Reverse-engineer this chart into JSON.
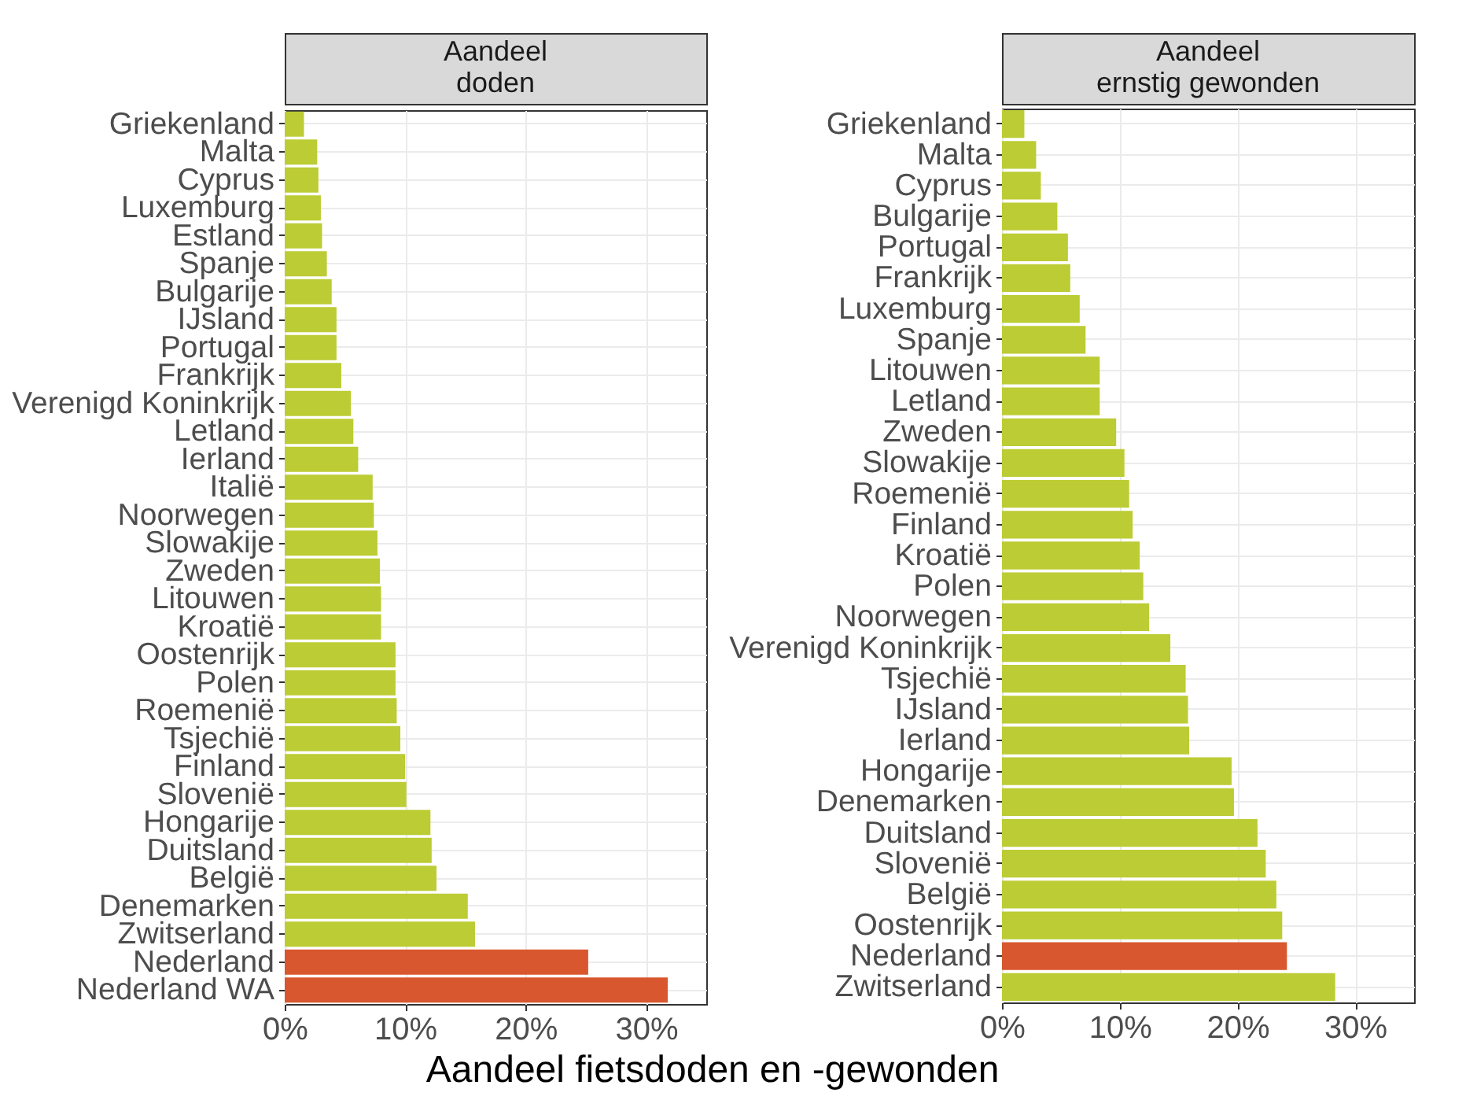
{
  "chart_data": [
    {
      "type": "bar",
      "orientation": "horizontal",
      "title": "Aandeel\ndoden",
      "xlabel": "Aandeel fietsdoden en -gewonden",
      "categories": [
        "Griekenland",
        "Malta",
        "Cyprus",
        "Luxemburg",
        "Estland",
        "Spanje",
        "Bulgarije",
        "IJsland",
        "Portugal",
        "Frankrijk",
        "Verenigd Koninkrijk",
        "Letland",
        "Ierland",
        "Italië",
        "Noorwegen",
        "Slowakije",
        "Zweden",
        "Litouwen",
        "Kroatië",
        "Oostenrijk",
        "Polen",
        "Roemenië",
        "Tsjechië",
        "Finland",
        "Slovenië",
        "Hongarije",
        "Duitsland",
        "België",
        "Denemarken",
        "Zwitserland",
        "Nederland",
        "Nederland WA"
      ],
      "values": [
        1.6,
        2.7,
        2.8,
        3.0,
        3.1,
        3.5,
        3.9,
        4.3,
        4.3,
        4.7,
        5.5,
        5.7,
        6.1,
        7.3,
        7.4,
        7.7,
        7.9,
        8.0,
        8.0,
        9.2,
        9.2,
        9.3,
        9.6,
        10.0,
        10.1,
        12.1,
        12.2,
        12.6,
        15.2,
        15.8,
        25.2,
        31.8
      ],
      "colors": [
        "#bccc34",
        "#bccc34",
        "#bccc34",
        "#bccc34",
        "#bccc34",
        "#bccc34",
        "#bccc34",
        "#bccc34",
        "#bccc34",
        "#bccc34",
        "#bccc34",
        "#bccc34",
        "#bccc34",
        "#bccc34",
        "#bccc34",
        "#bccc34",
        "#bccc34",
        "#bccc34",
        "#bccc34",
        "#bccc34",
        "#bccc34",
        "#bccc34",
        "#bccc34",
        "#bccc34",
        "#bccc34",
        "#bccc34",
        "#bccc34",
        "#bccc34",
        "#bccc34",
        "#bccc34",
        "#d9572e",
        "#d9572e"
      ],
      "xlim": [
        0,
        35
      ],
      "xticks": [
        {
          "value": 0,
          "label": "0%"
        },
        {
          "value": 10,
          "label": "10%"
        },
        {
          "value": 20,
          "label": "20%"
        },
        {
          "value": 30,
          "label": "30%"
        }
      ],
      "grid": true
    },
    {
      "type": "bar",
      "orientation": "horizontal",
      "title": "Aandeel\nernstig gewonden",
      "categories": [
        "Griekenland",
        "Malta",
        "Cyprus",
        "Bulgarije",
        "Portugal",
        "Frankrijk",
        "Luxemburg",
        "Spanje",
        "Litouwen",
        "Letland",
        "Zweden",
        "Slowakije",
        "Roemenië",
        "Finland",
        "Kroatië",
        "Polen",
        "Noorwegen",
        "Verenigd Koninkrijk",
        "Tsjechië",
        "IJsland",
        "Ierland",
        "Hongarije",
        "Denemarken",
        "Duitsland",
        "Slovenië",
        "België",
        "Oostenrijk",
        "Nederland",
        "Zwitserland"
      ],
      "values": [
        1.9,
        2.9,
        3.3,
        4.7,
        5.6,
        5.8,
        6.6,
        7.1,
        8.3,
        8.3,
        9.7,
        10.4,
        10.8,
        11.1,
        11.7,
        12.0,
        12.5,
        14.3,
        15.6,
        15.8,
        15.9,
        19.5,
        19.7,
        21.7,
        22.4,
        23.3,
        23.8,
        24.2,
        28.3
      ],
      "colors": [
        "#bccc34",
        "#bccc34",
        "#bccc34",
        "#bccc34",
        "#bccc34",
        "#bccc34",
        "#bccc34",
        "#bccc34",
        "#bccc34",
        "#bccc34",
        "#bccc34",
        "#bccc34",
        "#bccc34",
        "#bccc34",
        "#bccc34",
        "#bccc34",
        "#bccc34",
        "#bccc34",
        "#bccc34",
        "#bccc34",
        "#bccc34",
        "#bccc34",
        "#bccc34",
        "#bccc34",
        "#bccc34",
        "#bccc34",
        "#bccc34",
        "#d9572e",
        "#bccc34"
      ],
      "xlim": [
        0,
        35
      ],
      "xticks": [
        {
          "value": 0,
          "label": "0%"
        },
        {
          "value": 10,
          "label": "10%"
        },
        {
          "value": 20,
          "label": "20%"
        },
        {
          "value": 30,
          "label": "30%"
        }
      ],
      "grid": true
    }
  ]
}
